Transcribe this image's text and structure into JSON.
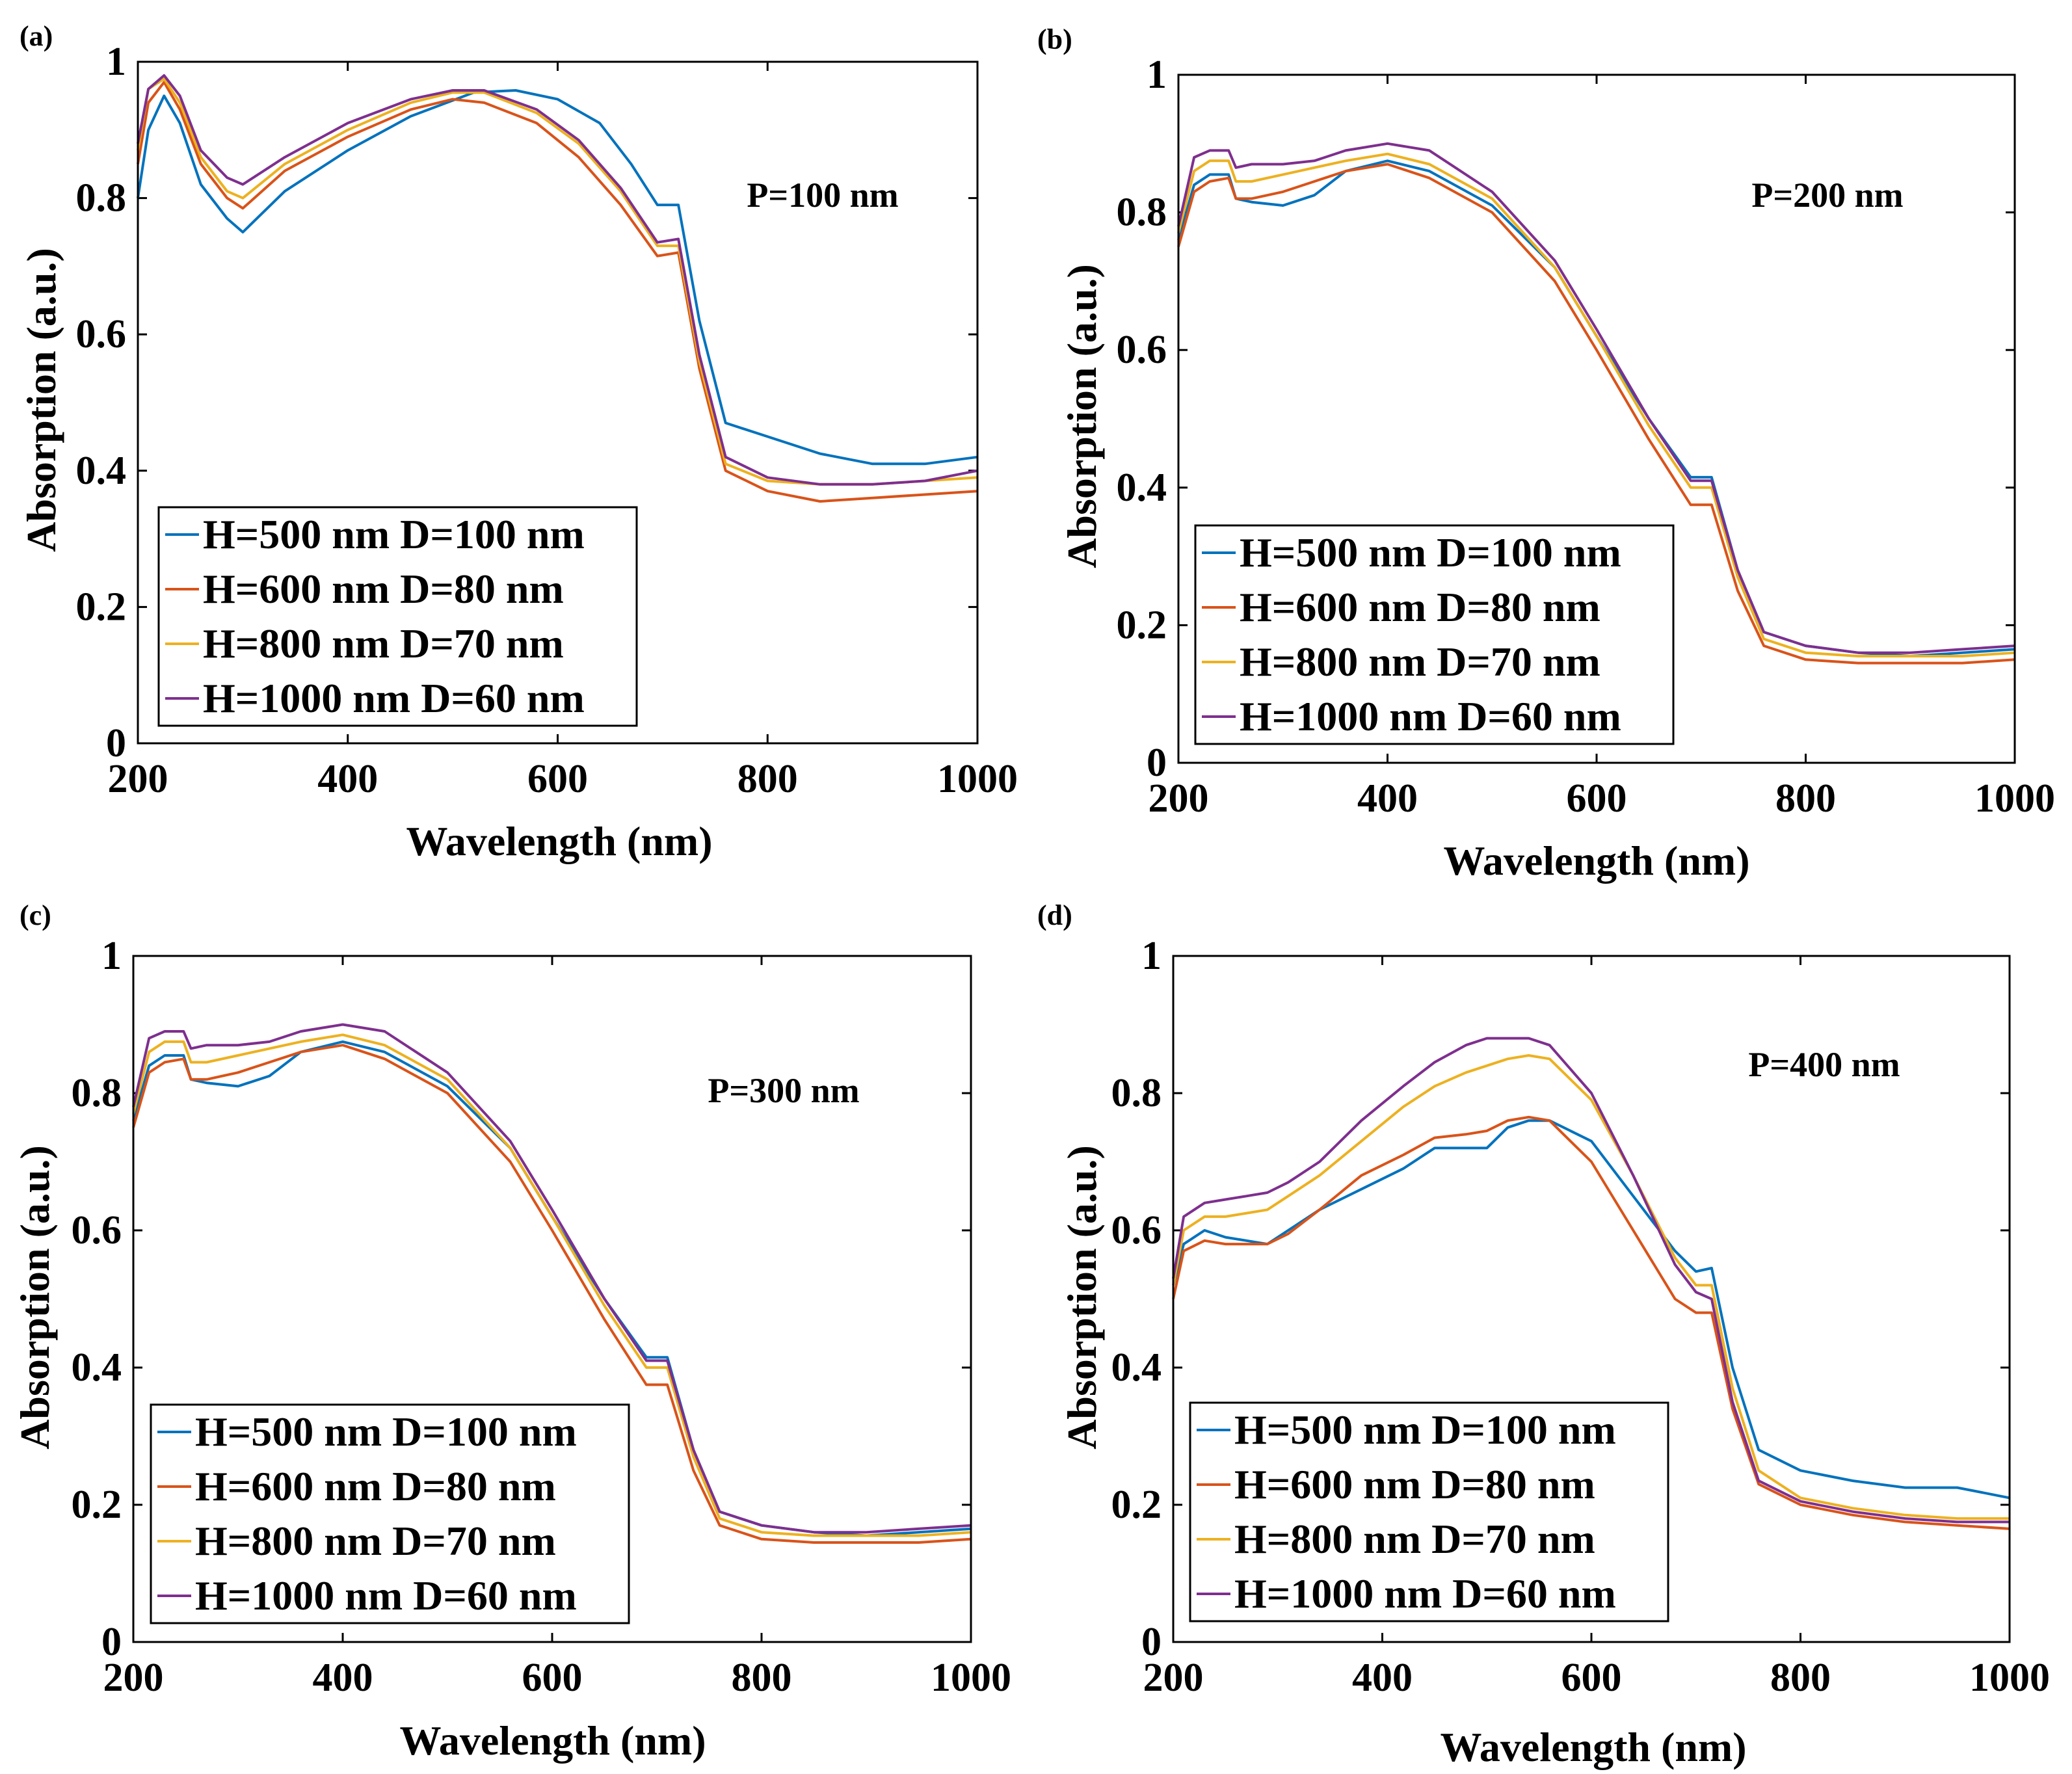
{
  "figure": {
    "background": "#ffffff"
  },
  "colors": {
    "blue": "#0072BD",
    "red": "#D95319",
    "yellow": "#EDB120",
    "purple": "#7E2F8E"
  },
  "chart_data": [
    {
      "panel": "(a)",
      "type": "line",
      "title": "",
      "annotation": "P=100 nm",
      "xlabel": "Wavelength (nm)",
      "ylabel": "Absorption (a.u.)",
      "xlim": [
        200,
        1000
      ],
      "ylim": [
        0,
        1
      ],
      "xticks": [
        "200",
        "400",
        "600",
        "800",
        "1000"
      ],
      "yticks": [
        "0",
        "0.2",
        "0.4",
        "0.6",
        "0.8",
        "1"
      ],
      "legend_position": "bottom-left",
      "series": [
        {
          "name": "H=500 nm D=100 nm",
          "color": "#0072BD",
          "x": [
            200,
            210,
            225,
            240,
            260,
            285,
            300,
            340,
            400,
            460,
            520,
            560,
            600,
            640,
            670,
            695,
            715,
            735,
            760,
            800,
            850,
            900,
            950,
            1000
          ],
          "y": [
            0.8,
            0.9,
            0.95,
            0.91,
            0.82,
            0.77,
            0.75,
            0.81,
            0.87,
            0.92,
            0.955,
            0.958,
            0.945,
            0.91,
            0.85,
            0.79,
            0.79,
            0.62,
            0.47,
            0.45,
            0.425,
            0.41,
            0.41,
            0.42
          ]
        },
        {
          "name": "H=600 nm D=80 nm",
          "color": "#D95319",
          "x": [
            200,
            210,
            225,
            240,
            260,
            285,
            300,
            340,
            400,
            460,
            500,
            530,
            580,
            620,
            660,
            695,
            715,
            735,
            760,
            800,
            850,
            900,
            950,
            1000
          ],
          "y": [
            0.85,
            0.94,
            0.97,
            0.93,
            0.85,
            0.8,
            0.785,
            0.84,
            0.89,
            0.93,
            0.945,
            0.94,
            0.91,
            0.86,
            0.79,
            0.715,
            0.72,
            0.55,
            0.4,
            0.37,
            0.355,
            0.36,
            0.365,
            0.37
          ]
        },
        {
          "name": "H=800 nm D=70 nm",
          "color": "#EDB120",
          "x": [
            200,
            210,
            225,
            240,
            260,
            285,
            300,
            340,
            400,
            460,
            500,
            530,
            580,
            620,
            660,
            695,
            715,
            735,
            760,
            800,
            850,
            900,
            950,
            1000
          ],
          "y": [
            0.87,
            0.96,
            0.975,
            0.94,
            0.86,
            0.81,
            0.8,
            0.85,
            0.9,
            0.94,
            0.955,
            0.955,
            0.925,
            0.88,
            0.81,
            0.73,
            0.73,
            0.56,
            0.41,
            0.385,
            0.38,
            0.38,
            0.385,
            0.39
          ]
        },
        {
          "name": "H=1000 nm D=60 nm",
          "color": "#7E2F8E",
          "x": [
            200,
            210,
            225,
            240,
            260,
            285,
            300,
            340,
            400,
            460,
            500,
            530,
            580,
            620,
            660,
            695,
            715,
            735,
            760,
            800,
            850,
            900,
            950,
            1000
          ],
          "y": [
            0.88,
            0.96,
            0.98,
            0.95,
            0.87,
            0.83,
            0.82,
            0.86,
            0.91,
            0.945,
            0.958,
            0.958,
            0.93,
            0.885,
            0.815,
            0.735,
            0.74,
            0.57,
            0.42,
            0.39,
            0.38,
            0.38,
            0.385,
            0.4
          ]
        }
      ]
    },
    {
      "panel": "(b)",
      "type": "line",
      "title": "",
      "annotation": "P=200 nm",
      "xlabel": "Wavelength (nm)",
      "ylabel": "Absorption (a.u.)",
      "xlim": [
        200,
        1000
      ],
      "ylim": [
        0,
        1
      ],
      "xticks": [
        "200",
        "400",
        "600",
        "800",
        "1000"
      ],
      "yticks": [
        "0",
        "0.2",
        "0.4",
        "0.6",
        "0.8",
        "1"
      ],
      "legend_position": "bottom-left",
      "series": [
        {
          "name": "H=500 nm D=100 nm",
          "color": "#0072BD",
          "x": [
            200,
            215,
            230,
            248,
            255,
            270,
            300,
            330,
            360,
            400,
            440,
            500,
            560,
            600,
            650,
            690,
            710,
            735,
            760,
            800,
            850,
            900,
            950,
            1000
          ],
          "y": [
            0.76,
            0.84,
            0.855,
            0.855,
            0.82,
            0.815,
            0.81,
            0.825,
            0.86,
            0.875,
            0.86,
            0.81,
            0.72,
            0.62,
            0.5,
            0.415,
            0.415,
            0.28,
            0.19,
            0.17,
            0.16,
            0.155,
            0.16,
            0.165
          ]
        },
        {
          "name": "H=600 nm D=80 nm",
          "color": "#D95319",
          "x": [
            200,
            215,
            230,
            248,
            255,
            270,
            300,
            330,
            360,
            400,
            440,
            500,
            560,
            600,
            650,
            690,
            710,
            735,
            760,
            800,
            850,
            900,
            950,
            1000
          ],
          "y": [
            0.75,
            0.83,
            0.845,
            0.85,
            0.82,
            0.82,
            0.83,
            0.845,
            0.86,
            0.87,
            0.85,
            0.8,
            0.7,
            0.6,
            0.47,
            0.375,
            0.375,
            0.25,
            0.17,
            0.15,
            0.145,
            0.145,
            0.145,
            0.15
          ]
        },
        {
          "name": "H=800 nm D=70 nm",
          "color": "#EDB120",
          "x": [
            200,
            215,
            230,
            248,
            255,
            270,
            300,
            330,
            360,
            400,
            440,
            500,
            560,
            600,
            650,
            690,
            710,
            735,
            760,
            800,
            850,
            900,
            950,
            1000
          ],
          "y": [
            0.77,
            0.86,
            0.875,
            0.875,
            0.845,
            0.845,
            0.855,
            0.865,
            0.875,
            0.885,
            0.87,
            0.82,
            0.72,
            0.62,
            0.49,
            0.4,
            0.4,
            0.27,
            0.18,
            0.16,
            0.155,
            0.155,
            0.155,
            0.16
          ]
        },
        {
          "name": "H=1000 nm D=60 nm",
          "color": "#7E2F8E",
          "x": [
            200,
            215,
            230,
            248,
            255,
            270,
            300,
            330,
            360,
            400,
            440,
            500,
            560,
            600,
            650,
            690,
            710,
            735,
            760,
            800,
            850,
            900,
            950,
            1000
          ],
          "y": [
            0.78,
            0.88,
            0.89,
            0.89,
            0.865,
            0.87,
            0.87,
            0.875,
            0.89,
            0.9,
            0.89,
            0.83,
            0.73,
            0.63,
            0.5,
            0.41,
            0.41,
            0.28,
            0.19,
            0.17,
            0.16,
            0.16,
            0.165,
            0.17
          ]
        }
      ]
    },
    {
      "panel": "(c)",
      "type": "line",
      "title": "",
      "annotation": "P=300 nm",
      "xlabel": "Wavelength (nm)",
      "ylabel": "Absorption (a.u.)",
      "xlim": [
        200,
        1000
      ],
      "ylim": [
        0,
        1
      ],
      "xticks": [
        "200",
        "400",
        "600",
        "800",
        "1000"
      ],
      "yticks": [
        "0",
        "0.2",
        "0.4",
        "0.6",
        "0.8",
        "1"
      ],
      "legend_position": "bottom-left",
      "series": [
        {
          "name": "H=500 nm D=100 nm",
          "color": "#0072BD",
          "x": [
            200,
            215,
            230,
            248,
            255,
            270,
            300,
            330,
            360,
            400,
            440,
            500,
            560,
            600,
            650,
            690,
            710,
            735,
            760,
            800,
            850,
            900,
            950,
            1000
          ],
          "y": [
            0.76,
            0.84,
            0.855,
            0.855,
            0.82,
            0.815,
            0.81,
            0.825,
            0.86,
            0.875,
            0.86,
            0.81,
            0.72,
            0.62,
            0.5,
            0.415,
            0.415,
            0.28,
            0.19,
            0.17,
            0.16,
            0.155,
            0.16,
            0.165
          ]
        },
        {
          "name": "H=600 nm D=80 nm",
          "color": "#D95319",
          "x": [
            200,
            215,
            230,
            248,
            255,
            270,
            300,
            330,
            360,
            400,
            440,
            500,
            560,
            600,
            650,
            690,
            710,
            735,
            760,
            800,
            850,
            900,
            950,
            1000
          ],
          "y": [
            0.75,
            0.83,
            0.845,
            0.85,
            0.82,
            0.82,
            0.83,
            0.845,
            0.86,
            0.87,
            0.85,
            0.8,
            0.7,
            0.6,
            0.47,
            0.375,
            0.375,
            0.25,
            0.17,
            0.15,
            0.145,
            0.145,
            0.145,
            0.15
          ]
        },
        {
          "name": "H=800 nm D=70 nm",
          "color": "#EDB120",
          "x": [
            200,
            215,
            230,
            248,
            255,
            270,
            300,
            330,
            360,
            400,
            440,
            500,
            560,
            600,
            650,
            690,
            710,
            735,
            760,
            800,
            850,
            900,
            950,
            1000
          ],
          "y": [
            0.77,
            0.86,
            0.875,
            0.875,
            0.845,
            0.845,
            0.855,
            0.865,
            0.875,
            0.885,
            0.87,
            0.82,
            0.72,
            0.62,
            0.49,
            0.4,
            0.4,
            0.27,
            0.18,
            0.16,
            0.155,
            0.155,
            0.155,
            0.16
          ]
        },
        {
          "name": "H=1000 nm D=60 nm",
          "color": "#7E2F8E",
          "x": [
            200,
            215,
            230,
            248,
            255,
            270,
            300,
            330,
            360,
            400,
            440,
            500,
            560,
            600,
            650,
            690,
            710,
            735,
            760,
            800,
            850,
            900,
            950,
            1000
          ],
          "y": [
            0.78,
            0.88,
            0.89,
            0.89,
            0.865,
            0.87,
            0.87,
            0.875,
            0.89,
            0.9,
            0.89,
            0.83,
            0.73,
            0.63,
            0.5,
            0.41,
            0.41,
            0.28,
            0.19,
            0.17,
            0.16,
            0.16,
            0.165,
            0.17
          ]
        }
      ]
    },
    {
      "panel": "(d)",
      "type": "line",
      "title": "",
      "annotation": "P=400 nm",
      "xlabel": "Wavelength (nm)",
      "ylabel": "Absorption (a.u.)",
      "xlim": [
        200,
        1000
      ],
      "ylim": [
        0,
        1
      ],
      "xticks": [
        "200",
        "400",
        "600",
        "800",
        "1000"
      ],
      "yticks": [
        "0",
        "0.2",
        "0.4",
        "0.6",
        "0.8",
        "1"
      ],
      "legend_position": "bottom-left",
      "series": [
        {
          "name": "H=500 nm D=100 nm",
          "color": "#0072BD",
          "x": [
            200,
            210,
            230,
            250,
            270,
            290,
            310,
            340,
            380,
            420,
            450,
            480,
            500,
            520,
            540,
            560,
            600,
            640,
            680,
            700,
            715,
            735,
            760,
            800,
            850,
            900,
            950,
            1000
          ],
          "y": [
            0.52,
            0.58,
            0.6,
            0.59,
            0.585,
            0.58,
            0.6,
            0.63,
            0.66,
            0.69,
            0.72,
            0.72,
            0.72,
            0.75,
            0.76,
            0.76,
            0.73,
            0.65,
            0.57,
            0.54,
            0.545,
            0.4,
            0.28,
            0.25,
            0.235,
            0.225,
            0.225,
            0.21
          ]
        },
        {
          "name": "H=600 nm D=80 nm",
          "color": "#D95319",
          "x": [
            200,
            210,
            230,
            250,
            270,
            290,
            310,
            340,
            380,
            420,
            450,
            480,
            500,
            520,
            540,
            560,
            600,
            640,
            680,
            700,
            715,
            735,
            760,
            800,
            850,
            900,
            950,
            1000
          ],
          "y": [
            0.5,
            0.57,
            0.585,
            0.58,
            0.58,
            0.58,
            0.595,
            0.63,
            0.68,
            0.71,
            0.735,
            0.74,
            0.745,
            0.76,
            0.765,
            0.76,
            0.7,
            0.6,
            0.5,
            0.48,
            0.48,
            0.34,
            0.23,
            0.2,
            0.185,
            0.175,
            0.17,
            0.165
          ]
        },
        {
          "name": "H=800 nm D=70 nm",
          "color": "#EDB120",
          "x": [
            200,
            210,
            230,
            250,
            270,
            290,
            310,
            340,
            380,
            420,
            450,
            480,
            500,
            520,
            540,
            560,
            600,
            640,
            680,
            700,
            715,
            735,
            760,
            800,
            850,
            900,
            950,
            1000
          ],
          "y": [
            0.52,
            0.6,
            0.62,
            0.62,
            0.625,
            0.63,
            0.65,
            0.68,
            0.73,
            0.78,
            0.81,
            0.83,
            0.84,
            0.85,
            0.855,
            0.85,
            0.79,
            0.68,
            0.56,
            0.52,
            0.52,
            0.37,
            0.25,
            0.21,
            0.195,
            0.185,
            0.18,
            0.18
          ]
        },
        {
          "name": "H=1000 nm D=60 nm",
          "color": "#7E2F8E",
          "x": [
            200,
            210,
            230,
            250,
            270,
            290,
            310,
            340,
            380,
            420,
            450,
            480,
            500,
            520,
            540,
            560,
            600,
            640,
            680,
            700,
            715,
            735,
            760,
            800,
            850,
            900,
            950,
            1000
          ],
          "y": [
            0.53,
            0.62,
            0.64,
            0.645,
            0.65,
            0.655,
            0.67,
            0.7,
            0.76,
            0.81,
            0.845,
            0.87,
            0.88,
            0.88,
            0.88,
            0.87,
            0.8,
            0.68,
            0.55,
            0.51,
            0.5,
            0.35,
            0.235,
            0.205,
            0.19,
            0.18,
            0.175,
            0.175
          ]
        }
      ]
    }
  ]
}
